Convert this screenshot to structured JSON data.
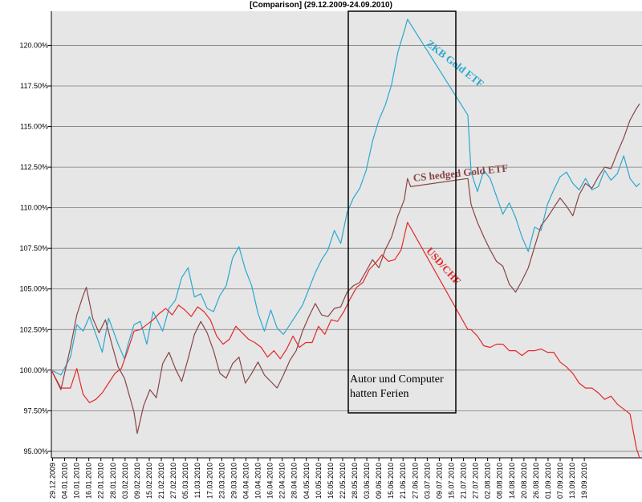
{
  "chart_data": {
    "type": "line",
    "title": "[Comparison] (29.12.2009-24.09.2010)",
    "ylim": [
      94.6,
      122.1
    ],
    "y_ticks": [
      "120.00%",
      "117.50%",
      "115.00%",
      "112.50%",
      "110.00%",
      "107.50%",
      "105.00%",
      "102.50%",
      "100.00%",
      "97.50%",
      "95.00%"
    ],
    "x_ticks": [
      "29.12.2009",
      "04.01.2010",
      "10.01.2010",
      "16.01.2010",
      "22.01.2010",
      "28.01.2010",
      "03.02.2010",
      "09.02.2010",
      "15.02.2010",
      "21.02.2010",
      "27.02.2010",
      "05.03.2010",
      "11.03.2010",
      "17.03.2010",
      "23.03.2010",
      "29.03.2010",
      "04.04.2010",
      "10.04.2010",
      "16.04.2010",
      "22.04.2010",
      "28.04.2010",
      "04.05.2010",
      "10.05.2010",
      "16.05.2010",
      "22.05.2010",
      "28.05.2010",
      "03.06.2010",
      "09.06.2010",
      "15.06.2010",
      "21.06.2010",
      "27.06.2010",
      "03.07.2010",
      "09.07.2010",
      "15.07.2010",
      "21.07.2010",
      "27.07.2010",
      "02.08.2010",
      "08.08.2010",
      "14.08.2010",
      "20.08.2010",
      "26.08.2010",
      "01.09.2010",
      "07.09.2010",
      "13.09.2010",
      "19.09.2010"
    ],
    "grid": true,
    "series": [
      {
        "name": "ZKB Gold ETF",
        "color": "#29a9cf",
        "label_angle": 38,
        "points": [
          [
            0,
            100
          ],
          [
            3,
            99.7
          ],
          [
            6,
            100.8
          ],
          [
            8,
            102.8
          ],
          [
            10,
            102.4
          ],
          [
            12,
            103.3
          ],
          [
            14,
            102.2
          ],
          [
            16,
            101.1
          ],
          [
            18,
            103.2
          ],
          [
            21,
            101.6
          ],
          [
            23,
            100.7
          ],
          [
            24,
            101.5
          ],
          [
            26,
            102.8
          ],
          [
            28,
            103
          ],
          [
            30,
            101.6
          ],
          [
            32,
            103.6
          ],
          [
            35,
            102.4
          ],
          [
            37,
            103.8
          ],
          [
            39,
            104.3
          ],
          [
            41,
            105.7
          ],
          [
            43,
            106.3
          ],
          [
            45,
            104.5
          ],
          [
            47,
            104.7
          ],
          [
            49,
            103.8
          ],
          [
            51,
            103.6
          ],
          [
            53,
            104.6
          ],
          [
            55,
            105.2
          ],
          [
            57,
            106.9
          ],
          [
            59,
            107.6
          ],
          [
            61,
            106.2
          ],
          [
            63,
            105.2
          ],
          [
            65,
            103.5
          ],
          [
            67,
            102.4
          ],
          [
            69,
            103.7
          ],
          [
            71,
            102.6
          ],
          [
            73,
            102.2
          ],
          [
            75,
            102.8
          ],
          [
            77,
            103.4
          ],
          [
            79,
            104
          ],
          [
            81,
            105
          ],
          [
            83,
            106
          ],
          [
            85,
            106.8
          ],
          [
            87,
            107.4
          ],
          [
            89,
            108.6
          ],
          [
            91,
            107.8
          ],
          [
            93,
            109.7
          ],
          [
            95,
            110.6
          ],
          [
            97,
            111.2
          ],
          [
            99,
            112.3
          ],
          [
            101,
            114.1
          ],
          [
            103,
            115.4
          ],
          [
            105,
            116.3
          ],
          [
            107,
            117.6
          ],
          [
            109,
            119.6
          ],
          [
            111,
            120.9
          ],
          [
            112,
            121.6
          ],
          [
            131,
            115.7
          ],
          [
            132,
            112.2
          ],
          [
            134,
            111
          ],
          [
            136,
            112.3
          ],
          [
            138,
            111.8
          ],
          [
            140,
            110.7
          ],
          [
            142,
            109.6
          ],
          [
            144,
            110.3
          ],
          [
            146,
            109.4
          ],
          [
            148,
            108.2
          ],
          [
            150,
            107.3
          ],
          [
            152,
            108.8
          ],
          [
            154,
            108.6
          ],
          [
            156,
            110.2
          ],
          [
            158,
            111.1
          ],
          [
            160,
            111.9
          ],
          [
            162,
            112.2
          ],
          [
            164,
            111.5
          ],
          [
            166,
            111.1
          ],
          [
            168,
            111.8
          ],
          [
            170,
            111.1
          ],
          [
            172,
            111.3
          ],
          [
            174,
            112.3
          ],
          [
            176,
            111.7
          ],
          [
            178,
            112.1
          ],
          [
            180,
            113.2
          ],
          [
            182,
            111.8
          ],
          [
            184,
            111.3
          ],
          [
            185,
            111.5
          ]
        ]
      },
      {
        "name": "CS hedged Gold ETF",
        "color": "#8a4545",
        "label_angle": -6,
        "points": [
          [
            0,
            100
          ],
          [
            3,
            98.8
          ],
          [
            6,
            101.4
          ],
          [
            8,
            103.4
          ],
          [
            10,
            104.6
          ],
          [
            11,
            105.1
          ],
          [
            13,
            103.2
          ],
          [
            15,
            102.3
          ],
          [
            17,
            103.1
          ],
          [
            19,
            101.6
          ],
          [
            21,
            100.2
          ],
          [
            23,
            99.5
          ],
          [
            25,
            98.1
          ],
          [
            26,
            97.4
          ],
          [
            27,
            96.1
          ],
          [
            29,
            97.8
          ],
          [
            31,
            98.8
          ],
          [
            33,
            98.3
          ],
          [
            35,
            100.4
          ],
          [
            37,
            101.1
          ],
          [
            39,
            100.1
          ],
          [
            41,
            99.3
          ],
          [
            43,
            100.7
          ],
          [
            45,
            102.2
          ],
          [
            47,
            103
          ],
          [
            49,
            102.3
          ],
          [
            51,
            101.2
          ],
          [
            53,
            99.8
          ],
          [
            55,
            99.5
          ],
          [
            57,
            100.4
          ],
          [
            59,
            100.8
          ],
          [
            61,
            99.2
          ],
          [
            63,
            99.8
          ],
          [
            65,
            100.5
          ],
          [
            67,
            99.7
          ],
          [
            69,
            99.3
          ],
          [
            71,
            98.9
          ],
          [
            73,
            99.7
          ],
          [
            75,
            100.6
          ],
          [
            77,
            101.2
          ],
          [
            79,
            102.4
          ],
          [
            81,
            103.3
          ],
          [
            83,
            104.1
          ],
          [
            85,
            103.4
          ],
          [
            87,
            103.3
          ],
          [
            89,
            103.8
          ],
          [
            91,
            103.9
          ],
          [
            93,
            104.8
          ],
          [
            95,
            105.2
          ],
          [
            97,
            105.4
          ],
          [
            99,
            106.1
          ],
          [
            101,
            106.8
          ],
          [
            103,
            106.3
          ],
          [
            105,
            107.4
          ],
          [
            107,
            108.2
          ],
          [
            109,
            109.5
          ],
          [
            111,
            110.5
          ],
          [
            112,
            111.8
          ],
          [
            113,
            111.3
          ],
          [
            131,
            111.8
          ],
          [
            132,
            110.2
          ],
          [
            134,
            109.1
          ],
          [
            136,
            108.2
          ],
          [
            138,
            107.4
          ],
          [
            140,
            106.7
          ],
          [
            142,
            106.4
          ],
          [
            144,
            105.3
          ],
          [
            146,
            104.8
          ],
          [
            148,
            105.5
          ],
          [
            150,
            106.3
          ],
          [
            152,
            107.6
          ],
          [
            154,
            108.9
          ],
          [
            156,
            109.4
          ],
          [
            158,
            110
          ],
          [
            160,
            110.6
          ],
          [
            162,
            110.1
          ],
          [
            164,
            109.5
          ],
          [
            166,
            110.8
          ],
          [
            168,
            111.5
          ],
          [
            170,
            111.2
          ],
          [
            172,
            111.9
          ],
          [
            174,
            112.5
          ],
          [
            176,
            112.4
          ],
          [
            178,
            113.4
          ],
          [
            180,
            114.3
          ],
          [
            182,
            115.4
          ],
          [
            184,
            116.1
          ],
          [
            185,
            116.4
          ]
        ]
      },
      {
        "name": "USD/CHF",
        "color": "#e3292b",
        "label_angle": 48,
        "points": [
          [
            0,
            100
          ],
          [
            3,
            98.9
          ],
          [
            6,
            98.9
          ],
          [
            8,
            100.1
          ],
          [
            10,
            98.5
          ],
          [
            12,
            98
          ],
          [
            14,
            98.2
          ],
          [
            16,
            98.6
          ],
          [
            18,
            99.2
          ],
          [
            20,
            99.8
          ],
          [
            22,
            100.1
          ],
          [
            24,
            101.2
          ],
          [
            26,
            102.4
          ],
          [
            28,
            102.5
          ],
          [
            30,
            102.8
          ],
          [
            32,
            103.1
          ],
          [
            34,
            103.5
          ],
          [
            36,
            103.8
          ],
          [
            38,
            103.4
          ],
          [
            40,
            104
          ],
          [
            42,
            103.7
          ],
          [
            44,
            103.3
          ],
          [
            46,
            103.9
          ],
          [
            48,
            103.6
          ],
          [
            50,
            103.1
          ],
          [
            52,
            102.1
          ],
          [
            54,
            101.6
          ],
          [
            56,
            101.9
          ],
          [
            58,
            102.7
          ],
          [
            60,
            102.3
          ],
          [
            62,
            101.9
          ],
          [
            64,
            101.7
          ],
          [
            66,
            101.4
          ],
          [
            68,
            100.8
          ],
          [
            70,
            101.2
          ],
          [
            72,
            100.7
          ],
          [
            74,
            101.3
          ],
          [
            76,
            102.1
          ],
          [
            78,
            101.4
          ],
          [
            80,
            101.7
          ],
          [
            82,
            101.7
          ],
          [
            84,
            102.7
          ],
          [
            86,
            102.2
          ],
          [
            88,
            103.1
          ],
          [
            90,
            103
          ],
          [
            92,
            103.6
          ],
          [
            94,
            104.4
          ],
          [
            96,
            105.1
          ],
          [
            98,
            105.4
          ],
          [
            100,
            106.2
          ],
          [
            102,
            106.6
          ],
          [
            104,
            107.1
          ],
          [
            106,
            106.7
          ],
          [
            108,
            106.8
          ],
          [
            110,
            107.4
          ],
          [
            112,
            109.1
          ],
          [
            131,
            102.5
          ],
          [
            132,
            102.5
          ],
          [
            134,
            102.1
          ],
          [
            136,
            101.5
          ],
          [
            138,
            101.4
          ],
          [
            140,
            101.6
          ],
          [
            142,
            101.6
          ],
          [
            144,
            101.2
          ],
          [
            146,
            101.2
          ],
          [
            148,
            100.9
          ],
          [
            150,
            101.2
          ],
          [
            152,
            101.2
          ],
          [
            154,
            101.3
          ],
          [
            156,
            101.1
          ],
          [
            158,
            101.1
          ],
          [
            160,
            100.5
          ],
          [
            162,
            100.2
          ],
          [
            164,
            99.8
          ],
          [
            166,
            99.2
          ],
          [
            168,
            98.9
          ],
          [
            170,
            98.9
          ],
          [
            172,
            98.6
          ],
          [
            174,
            98.2
          ],
          [
            176,
            98.4
          ],
          [
            178,
            97.9
          ],
          [
            180,
            97.6
          ],
          [
            182,
            97.3
          ],
          [
            184,
            95.2
          ],
          [
            185,
            94.6
          ]
        ]
      }
    ],
    "annotation_note": [
      "Autor und Computer",
      "hatten Ferien"
    ]
  }
}
